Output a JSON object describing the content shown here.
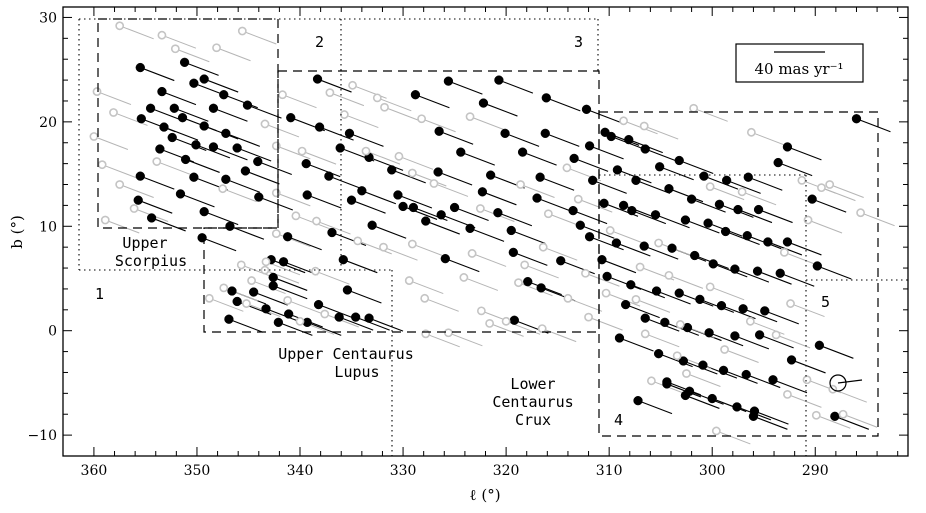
{
  "chart_data": {
    "type": "scatter",
    "xlabel": "ℓ (°)",
    "ylabel": "b (°)",
    "xlim": [
      363,
      281
    ],
    "ylim": [
      -12,
      31
    ],
    "x_reversed": true,
    "xticks": [
      360,
      350,
      340,
      330,
      320,
      310,
      300,
      290
    ],
    "yticks": [
      -10,
      0,
      10,
      20,
      30
    ],
    "ytick_labels": [
      "−10",
      "0",
      "10",
      "20",
      "30"
    ],
    "scale_bar_label": "40 mas yr⁻¹",
    "series": [
      {
        "marker": "filled-circle",
        "color": "#000000",
        "points": [
          [
            355.5,
            25.2
          ],
          [
            351.2,
            25.7
          ],
          [
            349.3,
            24.1
          ],
          [
            353.4,
            22.9
          ],
          [
            350.3,
            23.7
          ],
          [
            347.4,
            22.6
          ],
          [
            345.1,
            21.6
          ],
          [
            354.5,
            21.3
          ],
          [
            352.2,
            21.3
          ],
          [
            348.4,
            21.3
          ],
          [
            355.4,
            20.3
          ],
          [
            351.4,
            20.4
          ],
          [
            353.2,
            19.5
          ],
          [
            349.3,
            19.6
          ],
          [
            347.2,
            18.9
          ],
          [
            352.4,
            18.5
          ],
          [
            350.1,
            17.8
          ],
          [
            353.6,
            17.4
          ],
          [
            348.4,
            17.6
          ],
          [
            346.1,
            17.5
          ],
          [
            351.1,
            16.4
          ],
          [
            344.1,
            16.2
          ],
          [
            345.3,
            15.3
          ],
          [
            347.2,
            14.5
          ],
          [
            355.5,
            14.8
          ],
          [
            350.3,
            14.7
          ],
          [
            351.6,
            13.1
          ],
          [
            355.7,
            12.5
          ],
          [
            344.0,
            12.8
          ],
          [
            349.3,
            11.4
          ],
          [
            354.4,
            10.8
          ],
          [
            346.8,
            10.0
          ],
          [
            338.3,
            24.1
          ],
          [
            340.9,
            20.4
          ],
          [
            338.1,
            19.5
          ],
          [
            335.2,
            18.9
          ],
          [
            339.4,
            16.0
          ],
          [
            336.1,
            17.5
          ],
          [
            333.3,
            16.6
          ],
          [
            331.1,
            15.4
          ],
          [
            337.2,
            14.8
          ],
          [
            334.0,
            13.4
          ],
          [
            339.3,
            13.0
          ],
          [
            330.5,
            13.0
          ],
          [
            329.0,
            11.8
          ],
          [
            326.3,
            11.1
          ],
          [
            333.0,
            10.1
          ],
          [
            336.9,
            9.4
          ],
          [
            341.2,
            9.0
          ],
          [
            335.0,
            12.5
          ],
          [
            325.6,
            23.9
          ],
          [
            320.7,
            24.0
          ],
          [
            328.8,
            22.6
          ],
          [
            316.1,
            22.3
          ],
          [
            322.2,
            21.8
          ],
          [
            312.2,
            21.2
          ],
          [
            326.5,
            19.1
          ],
          [
            320.1,
            18.9
          ],
          [
            316.2,
            18.9
          ],
          [
            311.9,
            17.7
          ],
          [
            324.4,
            17.1
          ],
          [
            318.4,
            17.1
          ],
          [
            313.4,
            16.5
          ],
          [
            309.8,
            18.6
          ],
          [
            326.6,
            15.2
          ],
          [
            321.5,
            14.9
          ],
          [
            316.7,
            14.7
          ],
          [
            311.6,
            14.4
          ],
          [
            322.3,
            13.3
          ],
          [
            317.0,
            12.7
          ],
          [
            325.0,
            11.8
          ],
          [
            320.8,
            11.3
          ],
          [
            313.5,
            11.5
          ],
          [
            308.6,
            12.0
          ],
          [
            327.8,
            10.5
          ],
          [
            323.5,
            9.8
          ],
          [
            319.5,
            9.6
          ],
          [
            312.8,
            10.1
          ],
          [
            325.9,
            6.9
          ],
          [
            319.3,
            7.5
          ],
          [
            314.7,
            6.7
          ],
          [
            310.7,
            6.8
          ],
          [
            317.9,
            4.7
          ],
          [
            316.6,
            4.1
          ],
          [
            319.2,
            1.0
          ],
          [
            310.4,
            19.0
          ],
          [
            308.1,
            18.3
          ],
          [
            306.5,
            17.4
          ],
          [
            305.1,
            15.7
          ],
          [
            303.2,
            16.3
          ],
          [
            300.8,
            14.8
          ],
          [
            298.6,
            14.4
          ],
          [
            296.5,
            14.7
          ],
          [
            293.6,
            16.1
          ],
          [
            292.7,
            17.6
          ],
          [
            309.2,
            15.4
          ],
          [
            307.4,
            14.4
          ],
          [
            304.2,
            13.6
          ],
          [
            302.0,
            12.6
          ],
          [
            299.3,
            12.1
          ],
          [
            297.5,
            11.6
          ],
          [
            295.5,
            11.6
          ],
          [
            290.3,
            12.6
          ],
          [
            286.0,
            20.3
          ],
          [
            310.5,
            12.2
          ],
          [
            307.8,
            11.5
          ],
          [
            305.5,
            11.1
          ],
          [
            302.6,
            10.6
          ],
          [
            300.4,
            10.3
          ],
          [
            298.7,
            9.5
          ],
          [
            296.6,
            9.1
          ],
          [
            294.6,
            8.5
          ],
          [
            292.7,
            8.5
          ],
          [
            289.8,
            6.2
          ],
          [
            311.9,
            9.0
          ],
          [
            309.3,
            8.4
          ],
          [
            306.6,
            8.1
          ],
          [
            303.9,
            7.9
          ],
          [
            301.7,
            7.2
          ],
          [
            299.9,
            6.4
          ],
          [
            297.8,
            5.9
          ],
          [
            295.6,
            5.7
          ],
          [
            293.4,
            5.5
          ],
          [
            310.2,
            5.2
          ],
          [
            307.9,
            4.4
          ],
          [
            305.4,
            3.8
          ],
          [
            303.2,
            3.6
          ],
          [
            301.2,
            3.0
          ],
          [
            299.1,
            2.4
          ],
          [
            297.0,
            2.1
          ],
          [
            294.9,
            1.9
          ],
          [
            308.4,
            2.5
          ],
          [
            306.5,
            1.2
          ],
          [
            304.6,
            0.8
          ],
          [
            302.4,
            0.3
          ],
          [
            300.3,
            -0.2
          ],
          [
            297.8,
            -0.5
          ],
          [
            295.4,
            -0.4
          ],
          [
            309.0,
            -0.7
          ],
          [
            305.2,
            -2.2
          ],
          [
            302.8,
            -2.9
          ],
          [
            300.9,
            -3.3
          ],
          [
            298.9,
            -3.8
          ],
          [
            296.7,
            -4.2
          ],
          [
            304.4,
            -5.1
          ],
          [
            302.2,
            -5.8
          ],
          [
            300.0,
            -6.5
          ],
          [
            297.6,
            -7.3
          ],
          [
            295.9,
            -7.7
          ],
          [
            307.2,
            -6.7
          ],
          [
            296.0,
            -8.2
          ],
          [
            288.1,
            -8.2
          ],
          [
            289.6,
            -1.4
          ],
          [
            292.3,
            -2.8
          ],
          [
            294.1,
            -4.7
          ],
          [
            302.6,
            -6.2
          ],
          [
            304.4,
            -4.9
          ],
          [
            346.6,
            3.8
          ],
          [
            344.5,
            3.7
          ],
          [
            342.6,
            4.3
          ],
          [
            346.1,
            2.8
          ],
          [
            343.3,
            2.1
          ],
          [
            341.1,
            1.6
          ],
          [
            338.2,
            2.5
          ],
          [
            335.4,
            3.9
          ],
          [
            336.2,
            1.3
          ],
          [
            334.6,
            1.3
          ],
          [
            333.3,
            1.2
          ],
          [
            339.3,
            0.8
          ],
          [
            342.1,
            0.8
          ],
          [
            346.9,
            1.1
          ],
          [
            342.6,
            5.1
          ],
          [
            349.5,
            8.9
          ],
          [
            330.0,
            11.9
          ],
          [
            335.8,
            6.8
          ],
          [
            342.8,
            6.8
          ],
          [
            341.6,
            6.6
          ]
        ]
      },
      {
        "marker": "open-circle",
        "color": "#bdbdbd",
        "points": [
          [
            357.5,
            29.2
          ],
          [
            353.4,
            28.3
          ],
          [
            345.6,
            28.7
          ],
          [
            348.1,
            27.1
          ],
          [
            359.7,
            22.9
          ],
          [
            358.1,
            20.9
          ],
          [
            360.0,
            18.6
          ],
          [
            359.2,
            15.9
          ],
          [
            357.5,
            14.0
          ],
          [
            356.1,
            11.7
          ],
          [
            358.9,
            10.6
          ],
          [
            353.9,
            16.2
          ],
          [
            347.5,
            13.6
          ],
          [
            343.4,
            19.8
          ],
          [
            342.3,
            17.7
          ],
          [
            352.1,
            27.0
          ],
          [
            341.7,
            22.6
          ],
          [
            337.1,
            22.8
          ],
          [
            334.9,
            23.5
          ],
          [
            332.5,
            22.3
          ],
          [
            339.8,
            17.2
          ],
          [
            342.3,
            13.2
          ],
          [
            340.4,
            11.0
          ],
          [
            338.4,
            10.5
          ],
          [
            342.3,
            9.3
          ],
          [
            334.4,
            8.6
          ],
          [
            331.9,
            8.0
          ],
          [
            329.1,
            8.3
          ],
          [
            323.3,
            7.4
          ],
          [
            343.3,
            6.6
          ],
          [
            345.7,
            6.3
          ],
          [
            343.4,
            5.8
          ],
          [
            338.5,
            5.7
          ],
          [
            344.7,
            4.8
          ],
          [
            347.4,
            4.1
          ],
          [
            348.8,
            3.1
          ],
          [
            345.2,
            2.6
          ],
          [
            341.2,
            2.9
          ],
          [
            337.6,
            1.6
          ],
          [
            340.0,
            0.9
          ],
          [
            324.1,
            5.1
          ],
          [
            329.4,
            4.8
          ],
          [
            327.9,
            3.1
          ],
          [
            322.4,
            1.9
          ],
          [
            320.0,
            0.9
          ],
          [
            327.8,
            -0.3
          ],
          [
            321.6,
            0.7
          ],
          [
            316.5,
            0.2
          ],
          [
            331.8,
            21.4
          ],
          [
            328.2,
            20.3
          ],
          [
            323.5,
            20.5
          ],
          [
            329.1,
            15.1
          ],
          [
            327.0,
            14.1
          ],
          [
            322.5,
            11.7
          ],
          [
            318.6,
            14.0
          ],
          [
            314.1,
            15.6
          ],
          [
            313.0,
            12.6
          ],
          [
            315.9,
            11.2
          ],
          [
            316.4,
            8.0
          ],
          [
            318.2,
            6.3
          ],
          [
            312.3,
            5.5
          ],
          [
            314.0,
            3.1
          ],
          [
            312.0,
            1.3
          ],
          [
            325.6,
            -0.2
          ],
          [
            318.8,
            4.6
          ],
          [
            330.4,
            16.7
          ],
          [
            333.6,
            17.2
          ],
          [
            335.7,
            20.7
          ],
          [
            310.3,
            3.6
          ],
          [
            307.4,
            3.0
          ],
          [
            306.5,
            -0.3
          ],
          [
            303.1,
            0.6
          ],
          [
            305.9,
            -4.8
          ],
          [
            302.5,
            -4.1
          ],
          [
            298.8,
            -1.8
          ],
          [
            299.6,
            -9.6
          ],
          [
            292.7,
            -6.1
          ],
          [
            290.8,
            -4.7
          ],
          [
            288.3,
            -5.6
          ],
          [
            289.9,
            -8.1
          ],
          [
            287.3,
            -8.0
          ],
          [
            293.0,
            7.5
          ],
          [
            292.4,
            2.6
          ],
          [
            293.8,
            -0.4
          ],
          [
            296.3,
            0.9
          ],
          [
            303.4,
            -2.4
          ],
          [
            300.2,
            4.2
          ],
          [
            304.2,
            5.3
          ],
          [
            305.2,
            8.4
          ],
          [
            307.0,
            6.1
          ],
          [
            309.9,
            9.6
          ],
          [
            300.2,
            13.8
          ],
          [
            297.1,
            13.3
          ],
          [
            291.3,
            14.4
          ],
          [
            290.7,
            10.6
          ],
          [
            289.4,
            13.7
          ],
          [
            288.6,
            14.0
          ],
          [
            296.2,
            19.0
          ],
          [
            301.8,
            21.3
          ],
          [
            306.6,
            19.6
          ],
          [
            308.6,
            20.1
          ],
          [
            285.6,
            11.3
          ]
        ]
      }
    ]
  },
  "regions": [
    {
      "name": "Upper Scorpius",
      "lines": [
        "Upper",
        "Scorpius"
      ],
      "number": "1"
    },
    {
      "name": "Upper Centaurus Lupus",
      "lines": [
        "Upper Centaurus",
        "Lupus"
      ],
      "number": "2"
    },
    {
      "name": "Upper Centaurus Lupus",
      "number": "3"
    },
    {
      "name": "Lower Centaurus Crux",
      "lines": [
        "Lower",
        "Centaurus",
        "Crux"
      ],
      "number": "4"
    },
    {
      "name": "",
      "number": "5"
    }
  ]
}
